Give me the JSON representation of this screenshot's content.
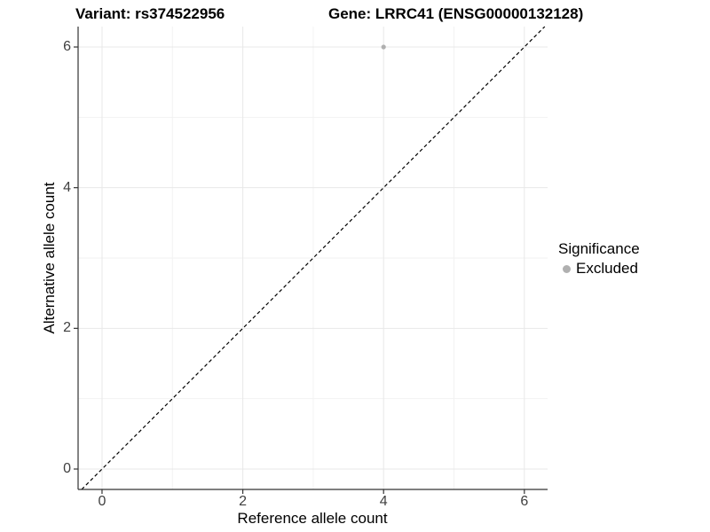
{
  "title": {
    "left": "Variant: rs374522956",
    "right": "Gene: LRRC41 (ENSG00000132128)"
  },
  "legend": {
    "title": "Significance",
    "items": [
      {
        "label": "Excluded",
        "color": "#b0b0b0"
      }
    ]
  },
  "colors": {
    "background": "#ffffff",
    "grid_major": "#e8e8e8",
    "grid_minor": "#f2f2f2",
    "axis_line": "#333333",
    "tick_label": "#404040",
    "point": "#b0b0b0",
    "reference_line": "#000000"
  },
  "chart_data": {
    "type": "scatter",
    "title": "Variant: rs374522956        Gene: LRRC41 (ENSG00000132128)",
    "xlabel": "Reference allele count",
    "ylabel": "Alternative allele count",
    "xlim": [
      -0.34,
      6.33
    ],
    "ylim": [
      -0.29,
      6.29
    ],
    "x_ticks": [
      0,
      2,
      4,
      6
    ],
    "y_ticks": [
      0,
      2,
      4,
      6
    ],
    "x_minor_ticks": [
      1,
      3,
      5
    ],
    "y_minor_ticks": [
      1,
      3,
      5
    ],
    "grid": true,
    "legend_position": "right",
    "legend_title": "Significance",
    "series": [
      {
        "name": "Excluded",
        "color": "#b0b0b0",
        "points": [
          {
            "x": 4,
            "y": 6
          }
        ]
      }
    ],
    "reference_line": {
      "slope": 1,
      "intercept": 0,
      "style": "dashed",
      "color": "#000000"
    }
  }
}
